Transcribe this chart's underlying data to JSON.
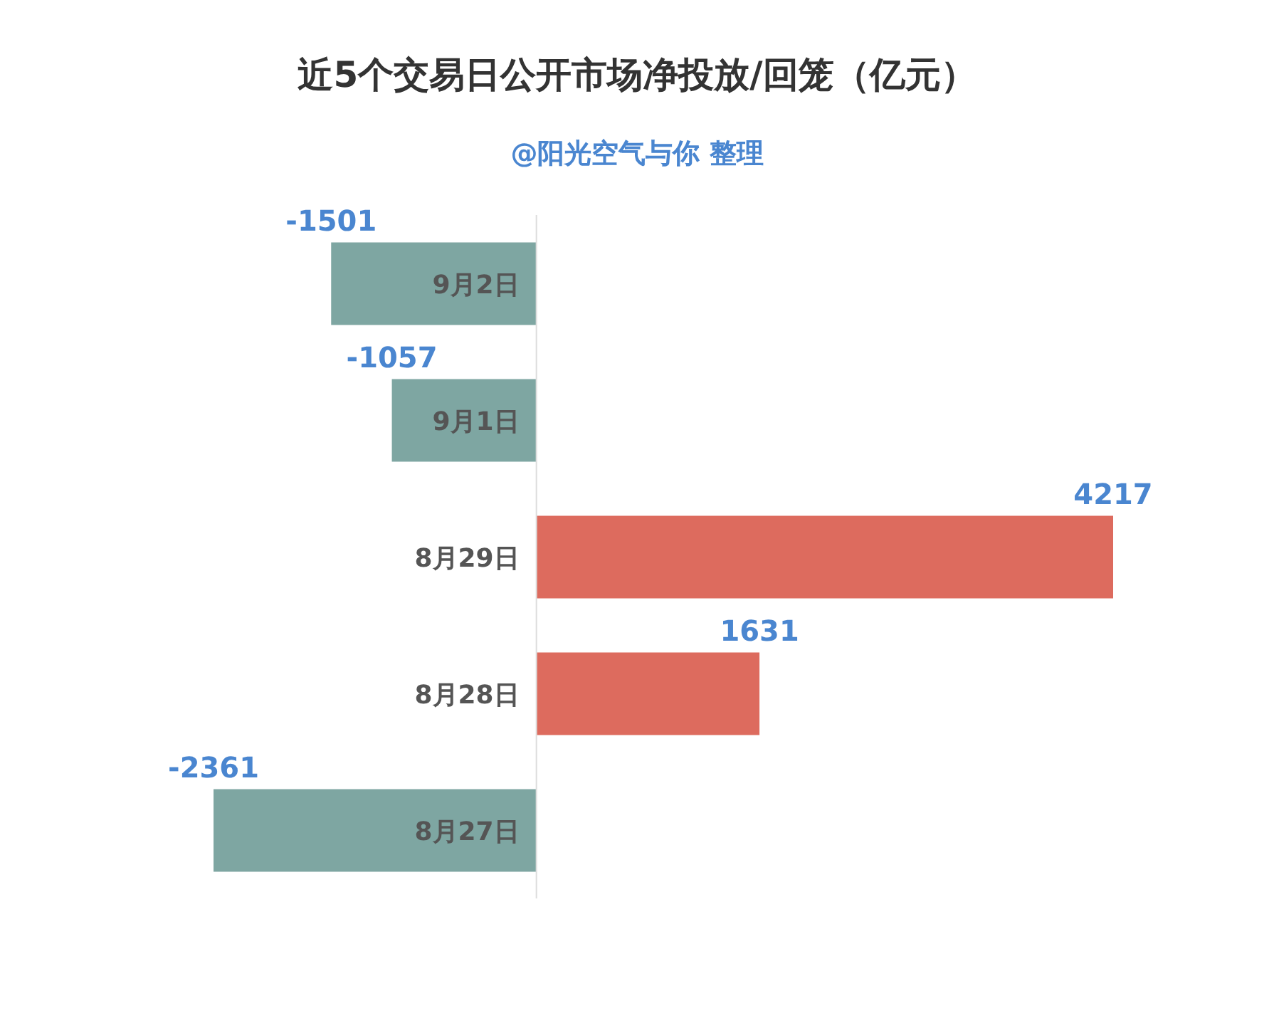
{
  "chart_data": {
    "type": "bar",
    "orientation": "horizontal",
    "title": "近5个交易日公开市场净投放/回笼（亿元）",
    "subtitle": "@阳光空气与你 整理",
    "categories": [
      "9月2日",
      "9月1日",
      "8月29日",
      "8月28日",
      "8月27日"
    ],
    "values": [
      -1501,
      -1057,
      4217,
      1631,
      -2361
    ],
    "colors": [
      "#7ea6a2",
      "#7ea6a2",
      "#dd6b5e",
      "#dd6b5e",
      "#7ea6a2"
    ],
    "data_labels": true
  }
}
